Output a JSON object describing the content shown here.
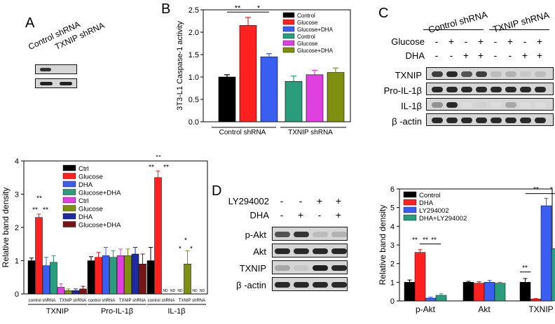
{
  "panels": {
    "A": "A",
    "B": "B",
    "C": "C",
    "D": "D"
  },
  "panelA_blot": {
    "lanes": [
      "Control shRNA",
      "TXNIP shRNA"
    ]
  },
  "panelC_blot": {
    "groups": [
      "Control shRNA",
      "TXNIP shRNA"
    ],
    "treat_rows": [
      {
        "label": "Glucose",
        "signs": [
          "-",
          "+",
          "-",
          "+",
          "-",
          "+",
          "-",
          "+"
        ]
      },
      {
        "label": "DHA",
        "signs": [
          "-",
          "-",
          "+",
          "+",
          "-",
          "-",
          "+",
          "+"
        ]
      }
    ],
    "bands": [
      "TXNIP",
      "Pro-IL-1β",
      "IL-1β",
      "β -actin"
    ]
  },
  "panelD_blot": {
    "treat_rows": [
      {
        "label": "LY294002",
        "signs": [
          "-",
          "-",
          "+",
          "+"
        ]
      },
      {
        "label": "DHA",
        "signs": [
          "-",
          "+",
          "-",
          "+"
        ]
      }
    ],
    "bands": [
      "p-Akt",
      "Akt",
      "TXNIP",
      "β -actin"
    ]
  },
  "chart_data": [
    {
      "id": "B",
      "type": "bar",
      "ylabel": "3T3-L1 Caspase-1 activity",
      "ylim": [
        0,
        2.5
      ],
      "yticks": [
        "0.0",
        "0.5",
        "1.0",
        "1.5",
        "2.0",
        "2.5"
      ],
      "groups": [
        "Control shRNA",
        "TXNIP shRNA"
      ],
      "legend": [
        "Control",
        "Glucose",
        "Glucose+DHA",
        "Control",
        "Glucose",
        "Glucose+DHA"
      ],
      "colors": [
        "#000000",
        "#ff2020",
        "#3a5ff0",
        "#2a9d7c",
        "#e040e0",
        "#7f8f10"
      ],
      "values": [
        1.0,
        2.15,
        1.45,
        0.9,
        1.05,
        1.1
      ],
      "errors": [
        0.05,
        0.18,
        0.07,
        0.12,
        0.1,
        0.1
      ],
      "sig": [
        "**",
        "*"
      ]
    },
    {
      "id": "A",
      "type": "bar",
      "ylabel": "Relative band density",
      "ylim": [
        0,
        4
      ],
      "yticks": [
        "0",
        "1",
        "2",
        "3",
        "4"
      ],
      "categories": [
        "TXNIP",
        "Pro-IL-1β",
        "IL-1β"
      ],
      "subgroups": [
        "control shRNA",
        "TXNIP shRNA"
      ],
      "legend": [
        "Ctrl",
        "Glucose",
        "DHA",
        "Glucose+DHA",
        "Ctrl",
        "Glucose",
        "DHA",
        "Glucose+DHA"
      ],
      "colors": [
        "#000000",
        "#ff2020",
        "#3a5ff0",
        "#2a9d7c",
        "#e040e0",
        "#7f8f10",
        "#1f2aa0",
        "#7a1414"
      ],
      "series_values": [
        [
          1.0,
          2.3,
          0.85,
          0.95,
          0.2,
          0.1,
          0.1,
          0.15
        ],
        [
          1.0,
          1.1,
          1.15,
          1.1,
          1.15,
          1.15,
          1.2,
          0.9
        ],
        [
          1.0,
          3.5,
          0,
          0,
          0,
          0.9,
          0,
          0
        ]
      ],
      "series_errors": [
        [
          0.08,
          0.1,
          0.25,
          0.2,
          0.1,
          0.05,
          0.05,
          0.08
        ],
        [
          0.12,
          0.15,
          0.25,
          0.2,
          0.2,
          0.2,
          0.2,
          0.3
        ],
        [
          0.4,
          0.2,
          0,
          0,
          0,
          0.4,
          0,
          0
        ]
      ],
      "nd_label": "ND",
      "sig": [
        "**",
        "**",
        "**",
        "**",
        "**",
        "**",
        "*",
        "*",
        "*"
      ]
    },
    {
      "id": "D",
      "type": "bar",
      "ylabel": "Relative band density",
      "ylim": [
        0,
        6
      ],
      "yticks": [
        "0",
        "1",
        "2",
        "3",
        "4",
        "5",
        "6"
      ],
      "categories": [
        "p-Akt",
        "Akt",
        "TXNIP"
      ],
      "legend": [
        "Control",
        "DHA",
        "LY294002",
        "DHA+LY294002"
      ],
      "colors": [
        "#000000",
        "#ff2020",
        "#3a5ff0",
        "#2a9d7c"
      ],
      "series_values": [
        [
          1.0,
          2.6,
          0.15,
          0.3
        ],
        [
          1.0,
          0.95,
          1.0,
          0.95
        ],
        [
          1.0,
          0.1,
          5.1,
          2.8
        ]
      ],
      "series_errors": [
        [
          0.12,
          0.15,
          0.05,
          0.08
        ],
        [
          0.05,
          0.08,
          0.1,
          0.05
        ],
        [
          0.2,
          0.03,
          0.4,
          0.3
        ]
      ],
      "sig": [
        "**",
        "**",
        "**",
        "**",
        "*",
        "**"
      ]
    }
  ]
}
